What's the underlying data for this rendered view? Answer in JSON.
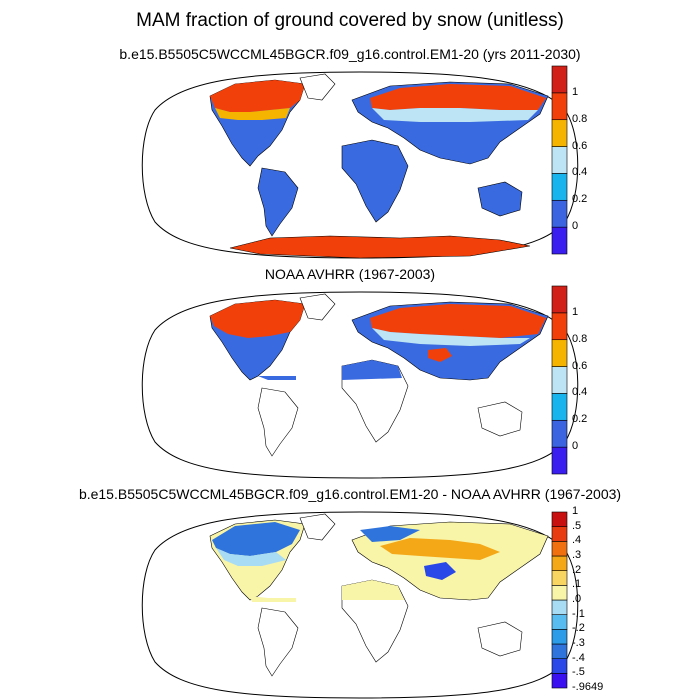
{
  "main_title": "MAM fraction of ground covered by snow (unitless)",
  "panels": [
    {
      "title": "b.e15.B5505C5WCCML45BGCR.f09_g16.control.EM1-20 (yrs 2011-2030)",
      "colorbar": {
        "colors": [
          "#3a1ef0",
          "#3a64e0",
          "#18b4ee",
          "#bce4f4",
          "#f5b400",
          "#f2400a",
          "#d02018"
        ],
        "labels": [
          "0",
          "0.2",
          "0.4",
          "0.6",
          "0.8",
          "1"
        ]
      }
    },
    {
      "title": "NOAA AVHRR (1967-2003)",
      "colorbar": {
        "colors": [
          "#3a1ef0",
          "#3a64e0",
          "#18b4ee",
          "#bce4f4",
          "#f5b400",
          "#f2400a",
          "#d02018"
        ],
        "labels": [
          "0",
          "0.2",
          "0.4",
          "0.6",
          "0.8",
          "1"
        ]
      }
    },
    {
      "title": "b.e15.B5505C5WCCML45BGCR.f09_g16.control.EM1-20 - NOAA AVHRR (1967-2003)",
      "colorbar": {
        "colors": [
          "#3a10f0",
          "#2a48e8",
          "#2f74dc",
          "#2c9ce8",
          "#58bcf0",
          "#a8dcf4",
          "#f8f4a8",
          "#f8d460",
          "#f4a818",
          "#f07010",
          "#e83c10",
          "#c81010"
        ],
        "labels": [
          "-.9649",
          "-.5",
          "-.4",
          "-.3",
          "-.2",
          "-.1",
          ".0",
          ".1",
          ".2",
          ".3",
          ".4",
          ".5",
          "1"
        ]
      }
    }
  ],
  "colors": {
    "ocean": "#ffffff",
    "coastline": "#000000",
    "no_snow": "#3a6ae0",
    "diff_zero": "#f8f4a8"
  }
}
